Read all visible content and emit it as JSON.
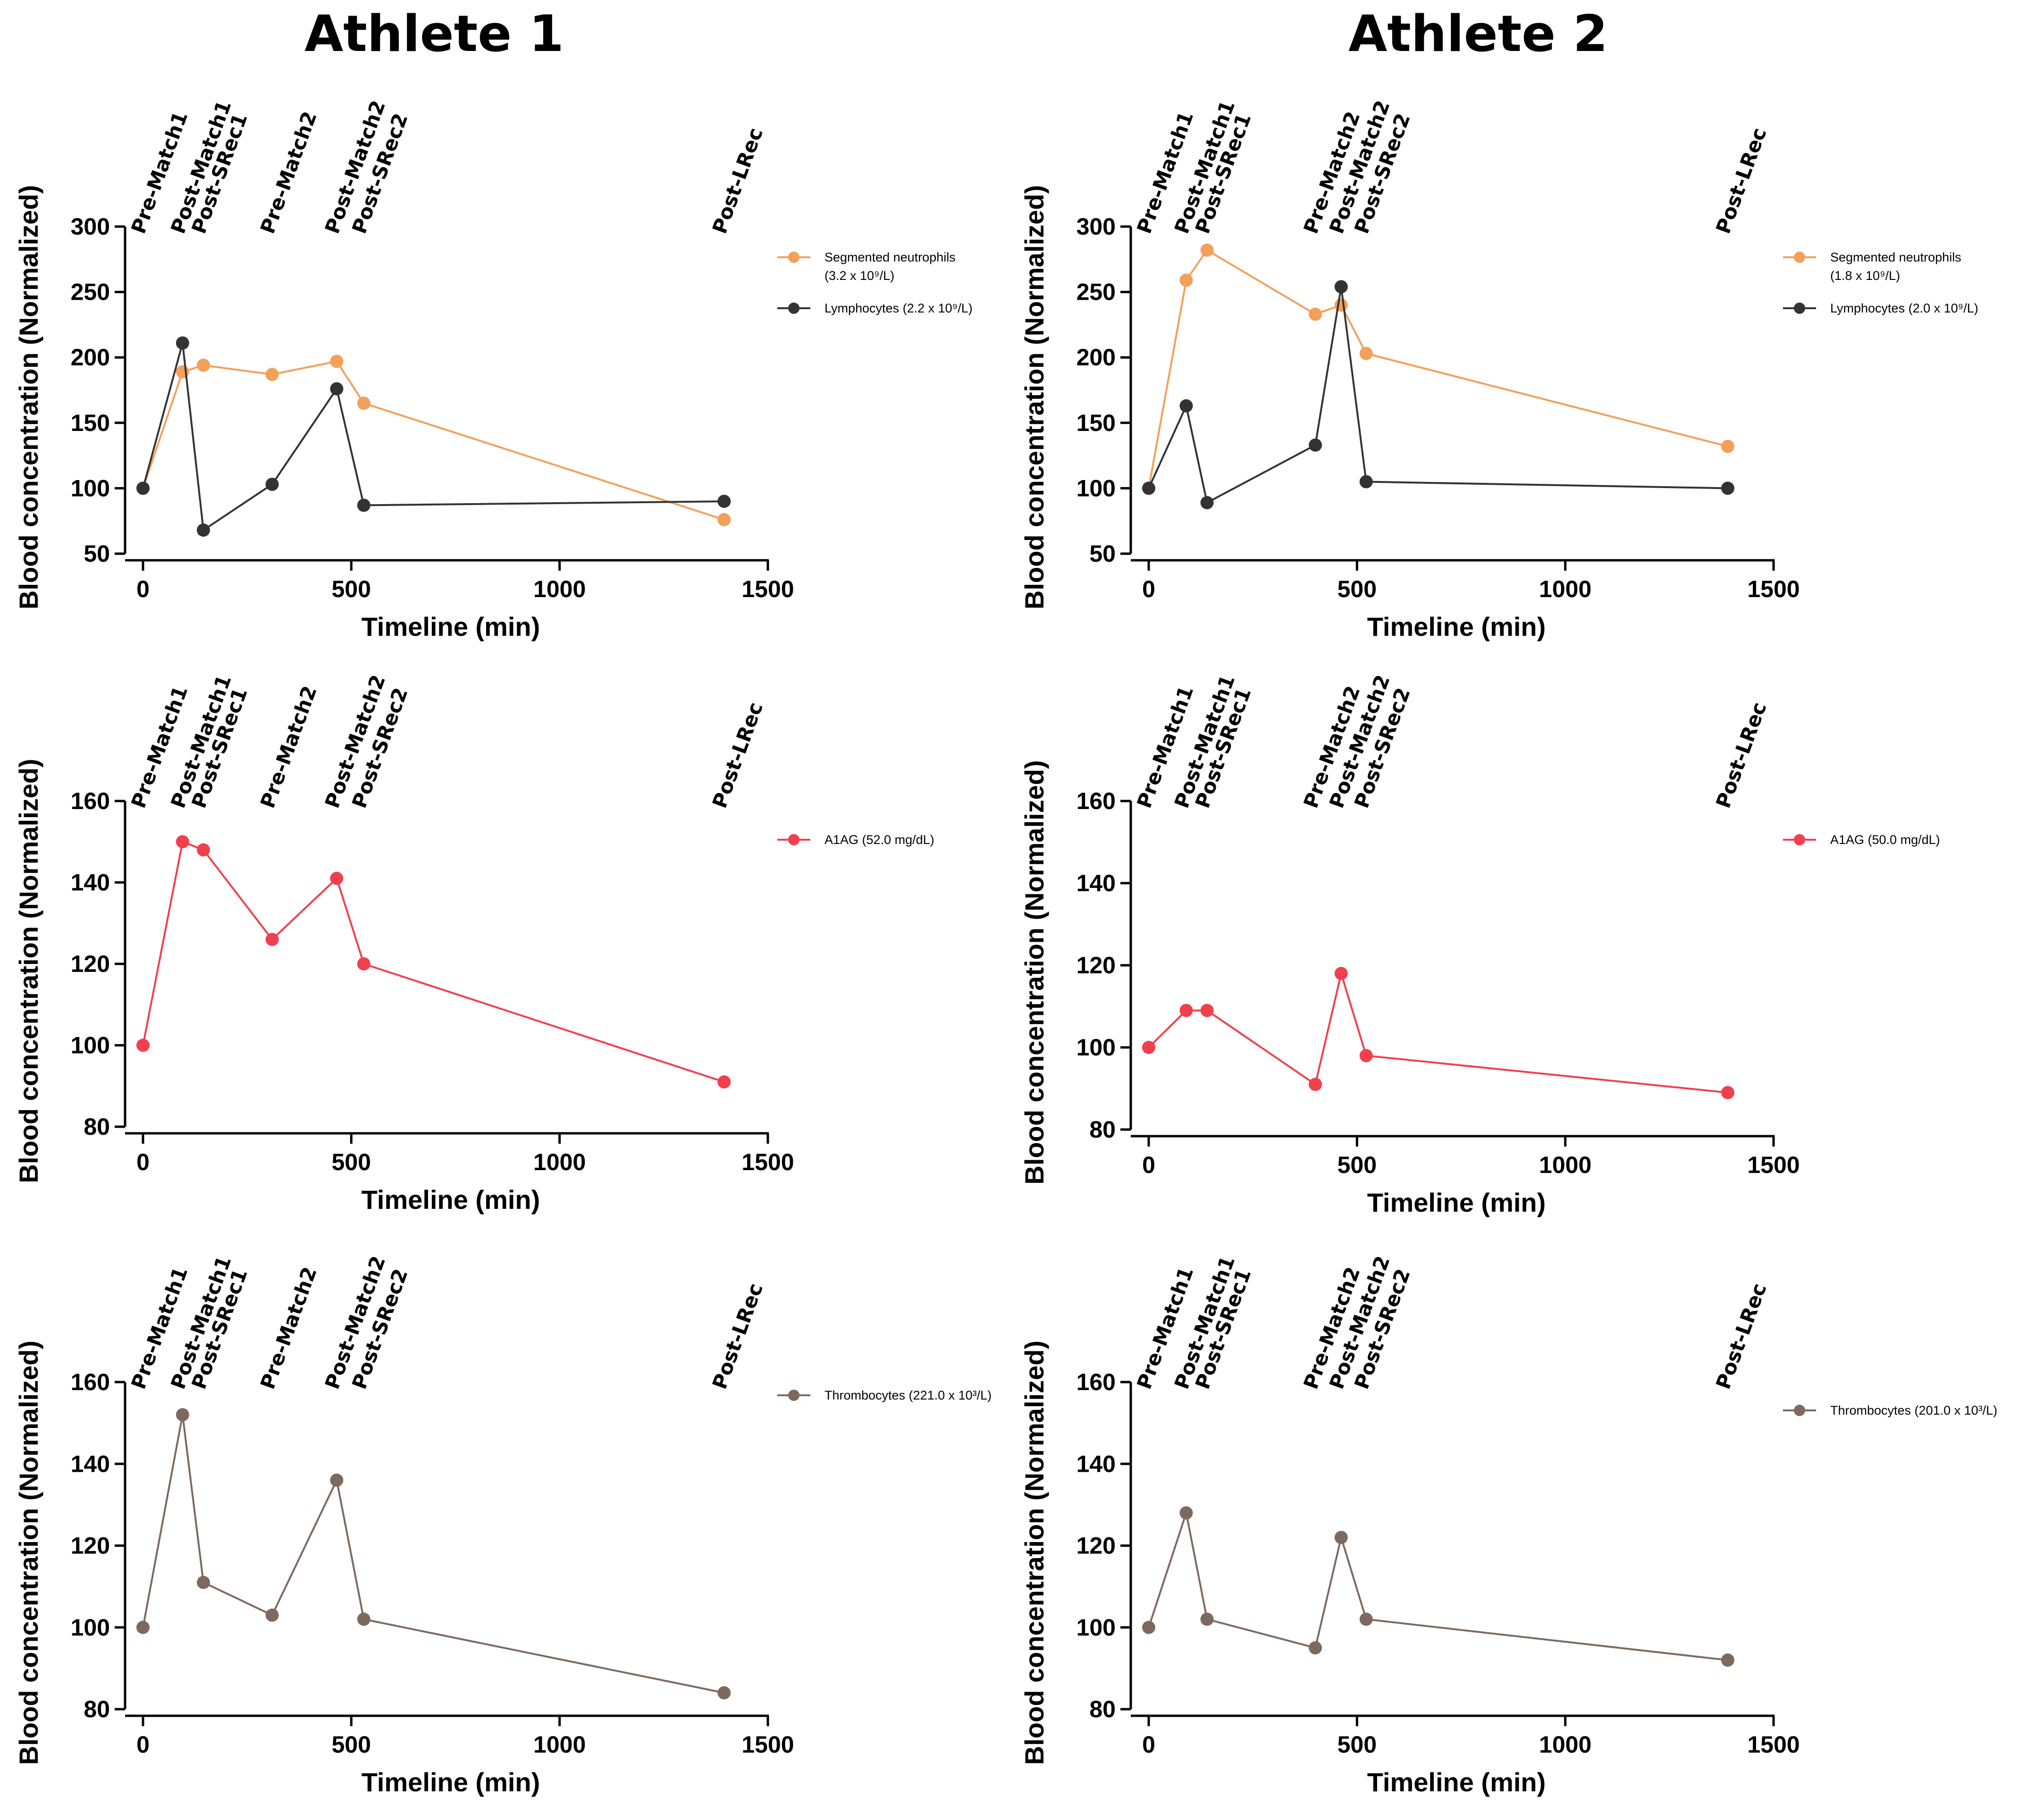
{
  "figure": {
    "headings": [
      "Athlete 1",
      "Athlete 2"
    ]
  },
  "chart_data": [
    {
      "type": "line",
      "athlete": "Athlete 1",
      "xlabel": "Timeline (min)",
      "ylabel": "Blood concentration (Normalized)",
      "xlim": [
        0,
        1500
      ],
      "ylim": [
        50,
        300
      ],
      "xticks": [
        0,
        500,
        1000,
        1500
      ],
      "yticks": [
        50,
        100,
        150,
        200,
        250,
        300
      ],
      "events": [
        {
          "label": "Pre-Match1",
          "x": 0
        },
        {
          "label": "Post-Match1",
          "x": 95
        },
        {
          "label": "Post-SRec1",
          "x": 145
        },
        {
          "label": "Pre-Match2",
          "x": 310
        },
        {
          "label": "Post-Match2",
          "x": 465
        },
        {
          "label": "Post-SRec2",
          "x": 530
        },
        {
          "label": "Post-LRec",
          "x": 1395
        }
      ],
      "series": [
        {
          "name": "Segmented neutrophils",
          "legend_line2": "(3.2 x 10⁹/L)",
          "color": "#f2a05a",
          "x": [
            0,
            95,
            145,
            310,
            465,
            530,
            1395
          ],
          "y": [
            100,
            189,
            194,
            187,
            197,
            165,
            76
          ]
        },
        {
          "name": "Lymphocytes (2.2 x 10⁹/L)",
          "color": "#333333",
          "x": [
            0,
            95,
            145,
            310,
            465,
            530,
            1395
          ],
          "y": [
            100,
            211,
            68,
            103,
            176,
            87,
            90
          ]
        }
      ]
    },
    {
      "type": "line",
      "athlete": "Athlete 2",
      "xlabel": "Timeline (min)",
      "ylabel": "Blood concentration (Normalized)",
      "xlim": [
        0,
        1500
      ],
      "ylim": [
        50,
        300
      ],
      "xticks": [
        0,
        500,
        1000,
        1500
      ],
      "yticks": [
        50,
        100,
        150,
        200,
        250,
        300
      ],
      "events": [
        {
          "label": "Pre-Match1",
          "x": 0
        },
        {
          "label": "Post-Match1",
          "x": 90
        },
        {
          "label": "Post-SRec1",
          "x": 140
        },
        {
          "label": "Pre-Match2",
          "x": 400
        },
        {
          "label": "Post-Match2",
          "x": 462
        },
        {
          "label": "Post-SRec2",
          "x": 522
        },
        {
          "label": "Post-LRec",
          "x": 1390
        }
      ],
      "series": [
        {
          "name": "Segmented neutrophils",
          "legend_line2": "(1.8 x 10⁹/L)",
          "color": "#f2a05a",
          "x": [
            0,
            90,
            140,
            400,
            462,
            522,
            1390
          ],
          "y": [
            100,
            259,
            282,
            233,
            240,
            203,
            132
          ]
        },
        {
          "name": "Lymphocytes (2.0 x 10⁹/L)",
          "color": "#333333",
          "x": [
            0,
            90,
            140,
            400,
            462,
            522,
            1390
          ],
          "y": [
            100,
            163,
            89,
            133,
            254,
            105,
            100
          ]
        }
      ]
    },
    {
      "type": "line",
      "athlete": "Athlete 1",
      "xlabel": "Timeline (min)",
      "ylabel": "Blood concentration (Normalized)",
      "xlim": [
        0,
        1500
      ],
      "ylim": [
        80,
        160
      ],
      "xticks": [
        0,
        500,
        1000,
        1500
      ],
      "yticks": [
        80,
        100,
        120,
        140,
        160
      ],
      "events": [
        {
          "label": "Pre-Match1",
          "x": 0
        },
        {
          "label": "Post-Match1",
          "x": 95
        },
        {
          "label": "Post-SRec1",
          "x": 145
        },
        {
          "label": "Pre-Match2",
          "x": 310
        },
        {
          "label": "Post-Match2",
          "x": 465
        },
        {
          "label": "Post-SRec2",
          "x": 530
        },
        {
          "label": "Post-LRec",
          "x": 1395
        }
      ],
      "series": [
        {
          "name": "A1AG (52.0 mg/dL)",
          "color": "#f0404e",
          "x": [
            0,
            95,
            145,
            310,
            465,
            530,
            1395
          ],
          "y": [
            100,
            150,
            148,
            126,
            141,
            120,
            91
          ]
        }
      ]
    },
    {
      "type": "line",
      "athlete": "Athlete 2",
      "xlabel": "Timeline (min)",
      "ylabel": "Blood concentration (Normalized)",
      "xlim": [
        0,
        1500
      ],
      "ylim": [
        80,
        160
      ],
      "xticks": [
        0,
        500,
        1000,
        1500
      ],
      "yticks": [
        80,
        100,
        120,
        140,
        160
      ],
      "events": [
        {
          "label": "Pre-Match1",
          "x": 0
        },
        {
          "label": "Post-Match1",
          "x": 90
        },
        {
          "label": "Post-SRec1",
          "x": 140
        },
        {
          "label": "Pre-Match2",
          "x": 400
        },
        {
          "label": "Post-Match2",
          "x": 462
        },
        {
          "label": "Post-SRec2",
          "x": 522
        },
        {
          "label": "Post-LRec",
          "x": 1390
        }
      ],
      "series": [
        {
          "name": "A1AG (50.0 mg/dL)",
          "color": "#f0404e",
          "x": [
            0,
            90,
            140,
            400,
            462,
            522,
            1390
          ],
          "y": [
            100,
            109,
            109,
            91,
            118,
            98,
            89
          ]
        }
      ]
    },
    {
      "type": "line",
      "athlete": "Athlete 1",
      "xlabel": "Timeline (min)",
      "ylabel": "Blood concentration (Normalized)",
      "xlim": [
        0,
        1500
      ],
      "ylim": [
        80,
        160
      ],
      "xticks": [
        0,
        500,
        1000,
        1500
      ],
      "yticks": [
        80,
        100,
        120,
        140,
        160
      ],
      "events": [
        {
          "label": "Pre-Match1",
          "x": 0
        },
        {
          "label": "Post-Match1",
          "x": 95
        },
        {
          "label": "Post-SRec1",
          "x": 145
        },
        {
          "label": "Pre-Match2",
          "x": 310
        },
        {
          "label": "Post-Match2",
          "x": 465
        },
        {
          "label": "Post-SRec2",
          "x": 530
        },
        {
          "label": "Post-LRec",
          "x": 1395
        }
      ],
      "series": [
        {
          "name": "Thrombocytes (221.0 x 10³/L)",
          "color": "#7d6a5e",
          "x": [
            0,
            95,
            145,
            310,
            465,
            530,
            1395
          ],
          "y": [
            100,
            152,
            111,
            103,
            136,
            102,
            84
          ]
        }
      ]
    },
    {
      "type": "line",
      "athlete": "Athlete 2",
      "xlabel": "Timeline (min)",
      "ylabel": "Blood concentration (Normalized)",
      "xlim": [
        0,
        1500
      ],
      "ylim": [
        80,
        160
      ],
      "xticks": [
        0,
        500,
        1000,
        1500
      ],
      "yticks": [
        80,
        100,
        120,
        140,
        160
      ],
      "events": [
        {
          "label": "Pre-Match1",
          "x": 0
        },
        {
          "label": "Post-Match1",
          "x": 90
        },
        {
          "label": "Post-SRec1",
          "x": 140
        },
        {
          "label": "Pre-Match2",
          "x": 400
        },
        {
          "label": "Post-Match2",
          "x": 462
        },
        {
          "label": "Post-SRec2",
          "x": 522
        },
        {
          "label": "Post-LRec",
          "x": 1390
        }
      ],
      "series": [
        {
          "name": "Thrombocytes (201.0 x 10³/L)",
          "color": "#7d6a5e",
          "x": [
            0,
            90,
            140,
            400,
            462,
            522,
            1390
          ],
          "y": [
            100,
            128,
            102,
            95,
            122,
            102,
            92
          ]
        }
      ]
    }
  ]
}
